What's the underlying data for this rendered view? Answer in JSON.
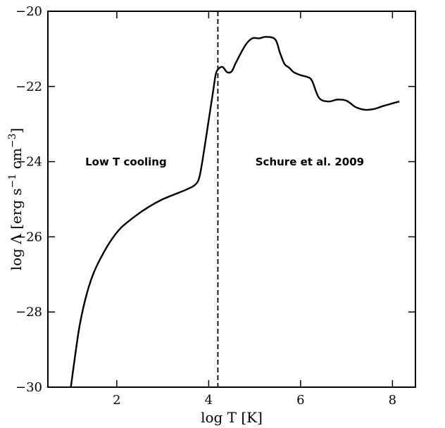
{
  "chart_data": {
    "type": "line",
    "title": "",
    "xlabel": "log T [K]",
    "ylabel_parts": {
      "main": "log Λ [erg s",
      "sup1": "−1",
      "mid": " cm",
      "sup2": "−3",
      "end": "]"
    },
    "xlim": [
      0.5,
      8.5
    ],
    "ylim": [
      -30,
      -20
    ],
    "xticks": [
      2,
      4,
      6,
      8
    ],
    "xtick_labels": [
      "2",
      "4",
      "6",
      "8"
    ],
    "yticks": [
      -30,
      -28,
      -26,
      -24,
      -22,
      -20
    ],
    "ytick_labels": [
      "−30",
      "−28",
      "−26",
      "−24",
      "−22",
      "−20"
    ],
    "grid": false,
    "series": [
      {
        "color": "#000000",
        "style": "solid",
        "x": [
          1.0,
          1.1,
          1.2,
          1.35,
          1.5,
          1.7,
          1.9,
          2.1,
          2.4,
          2.7,
          3.0,
          3.3,
          3.5,
          3.7,
          3.8,
          3.9,
          4.0,
          4.1,
          4.15,
          4.2,
          4.3,
          4.4,
          4.5,
          4.6,
          4.8,
          4.95,
          5.1,
          5.25,
          5.45,
          5.55,
          5.65,
          5.75,
          5.85,
          6.0,
          6.15,
          6.25,
          6.4,
          6.6,
          6.8,
          7.0,
          7.2,
          7.4,
          7.6,
          7.8,
          8.0,
          8.15
        ],
        "y": [
          -30.0,
          -29.1,
          -28.3,
          -27.5,
          -26.95,
          -26.45,
          -26.05,
          -25.75,
          -25.45,
          -25.2,
          -25.0,
          -24.85,
          -24.75,
          -24.62,
          -24.4,
          -23.7,
          -22.9,
          -22.1,
          -21.7,
          -21.55,
          -21.48,
          -21.62,
          -21.6,
          -21.35,
          -20.9,
          -20.72,
          -20.72,
          -20.68,
          -20.75,
          -21.1,
          -21.4,
          -21.5,
          -21.62,
          -21.7,
          -21.75,
          -21.85,
          -22.3,
          -22.4,
          -22.35,
          -22.38,
          -22.55,
          -22.62,
          -22.6,
          -22.52,
          -22.45,
          -22.4
        ]
      }
    ],
    "vline": {
      "x": 4.2,
      "style": "dashed",
      "color": "#000000"
    },
    "annotations": [
      {
        "text": "Low T cooling",
        "x": 2.2,
        "y": -24.1
      },
      {
        "text": "Schure et al. 2009",
        "x": 6.2,
        "y": -24.1
      }
    ]
  }
}
